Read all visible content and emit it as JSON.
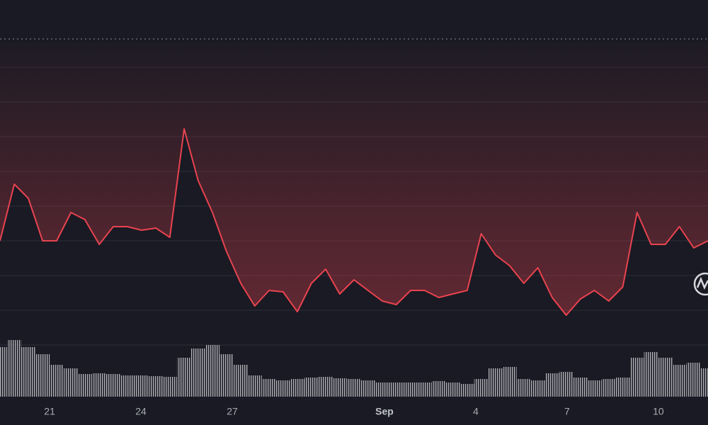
{
  "chart_data": {
    "type": "line",
    "x": [
      19.37,
      19.84,
      20.3,
      20.77,
      21.23,
      21.7,
      22.16,
      22.63,
      23.09,
      23.56,
      24.02,
      24.49,
      24.95,
      25.42,
      25.88,
      26.35,
      26.81,
      27.28,
      27.74,
      28.21,
      28.67,
      29.14,
      29.6,
      30.07,
      30.53,
      31.0,
      31.46,
      31.93,
      32.39,
      32.86,
      33.32,
      33.79,
      34.25,
      34.72,
      35.18,
      35.65,
      36.11,
      36.58,
      37.04,
      37.51,
      37.97,
      38.44,
      38.9,
      39.37,
      39.83,
      40.3,
      40.76,
      41.23,
      41.69,
      42.16,
      42.63
    ],
    "values": [
      260,
      340,
      320,
      260,
      260,
      300,
      290,
      255,
      280,
      280,
      275,
      278,
      265,
      418,
      345,
      300,
      245,
      200,
      168,
      190,
      188,
      160,
      200,
      220,
      185,
      205,
      190,
      175,
      170,
      190,
      190,
      180,
      185,
      190,
      270,
      240,
      225,
      200,
      222,
      180,
      155,
      178,
      190,
      175,
      195,
      300,
      255,
      255,
      280,
      250,
      260
    ],
    "color": "#e8434f",
    "volume_values": [
      70,
      80,
      70,
      60,
      45,
      40,
      32,
      33,
      32,
      30,
      30,
      29,
      28,
      55,
      68,
      73,
      60,
      45,
      30,
      25,
      23,
      25,
      27,
      28,
      26,
      25,
      23,
      20,
      20,
      20,
      20,
      22,
      20,
      18,
      25,
      40,
      42,
      25,
      23,
      33,
      35,
      27,
      23,
      25,
      27,
      55,
      63,
      55,
      45,
      48,
      40
    ],
    "volume_color": "#c9cacf",
    "xlim": [
      19.37,
      42.63
    ],
    "ylim": [
      0,
      600
    ],
    "y2lim": [
      0,
      100
    ],
    "xticks": [
      21,
      24,
      27,
      {
        "value": 32,
        "label": "Sep"
      },
      {
        "value": 35,
        "label": "4"
      },
      {
        "value": 38,
        "label": "7"
      },
      {
        "value": 41,
        "label": "10"
      }
    ],
    "grid": true
  }
}
